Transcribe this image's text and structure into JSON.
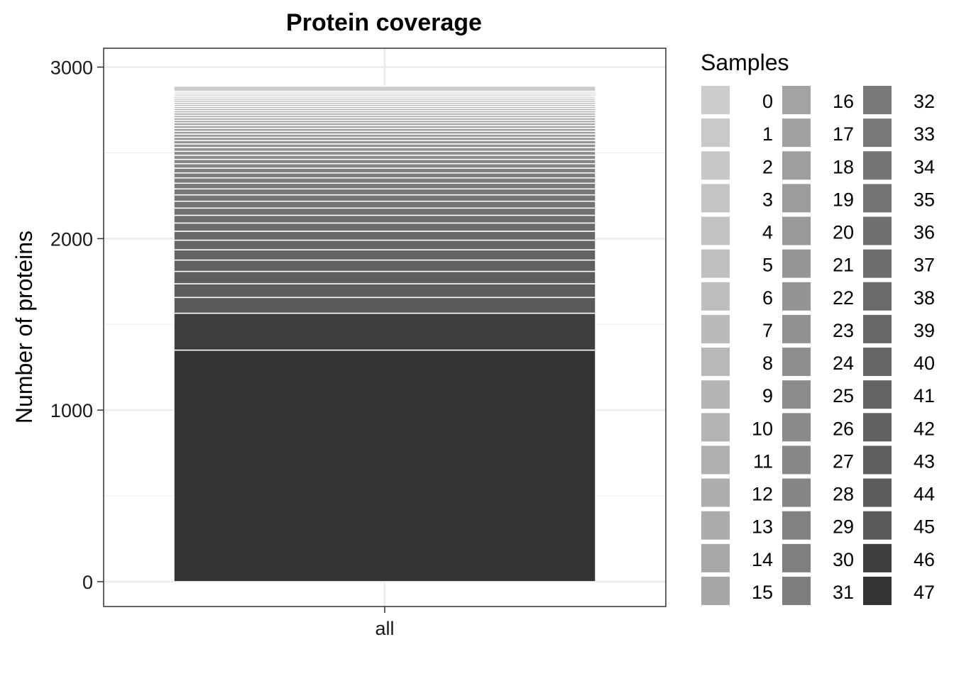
{
  "chart_data": {
    "type": "bar",
    "stacked": true,
    "title": "Protein coverage",
    "xlabel": "",
    "ylabel": "Number of proteins",
    "categories": [
      "all"
    ],
    "ylim": [
      -145,
      3110
    ],
    "yticks": [
      0,
      1000,
      2000,
      3000
    ],
    "ytick_labels": [
      "0",
      "1000",
      "2000",
      "3000"
    ],
    "grid": true,
    "legend": {
      "title": "Samples",
      "position": "right",
      "columns": 3
    },
    "stack_order": "sample 47 at bottom, sample 0 at top",
    "series": [
      {
        "name": "0",
        "values": [
          30
        ],
        "color": "#cccccc"
      },
      {
        "name": "1",
        "values": [
          10
        ],
        "color": "#c9c9c9"
      },
      {
        "name": "2",
        "values": [
          10
        ],
        "color": "#c7c7c7"
      },
      {
        "name": "3",
        "values": [
          10
        ],
        "color": "#c4c4c4"
      },
      {
        "name": "4",
        "values": [
          10
        ],
        "color": "#c2c2c2"
      },
      {
        "name": "5",
        "values": [
          12
        ],
        "color": "#bfbfbf"
      },
      {
        "name": "6",
        "values": [
          12
        ],
        "color": "#bdbdbd"
      },
      {
        "name": "7",
        "values": [
          12
        ],
        "color": "#bababa"
      },
      {
        "name": "8",
        "values": [
          12
        ],
        "color": "#b8b8b8"
      },
      {
        "name": "9",
        "values": [
          12
        ],
        "color": "#b5b5b5"
      },
      {
        "name": "10",
        "values": [
          13
        ],
        "color": "#b3b3b3"
      },
      {
        "name": "11",
        "values": [
          13
        ],
        "color": "#b0b0b0"
      },
      {
        "name": "12",
        "values": [
          14
        ],
        "color": "#aeaeae"
      },
      {
        "name": "13",
        "values": [
          14
        ],
        "color": "#ababab"
      },
      {
        "name": "14",
        "values": [
          15
        ],
        "color": "#a8a8a8"
      },
      {
        "name": "15",
        "values": [
          15
        ],
        "color": "#a6a6a6"
      },
      {
        "name": "16",
        "values": [
          16
        ],
        "color": "#a3a3a3"
      },
      {
        "name": "17",
        "values": [
          16
        ],
        "color": "#a1a1a1"
      },
      {
        "name": "18",
        "values": [
          17
        ],
        "color": "#9e9e9e"
      },
      {
        "name": "19",
        "values": [
          17
        ],
        "color": "#9c9c9c"
      },
      {
        "name": "20",
        "values": [
          18
        ],
        "color": "#999999"
      },
      {
        "name": "21",
        "values": [
          19
        ],
        "color": "#969696"
      },
      {
        "name": "22",
        "values": [
          20
        ],
        "color": "#949494"
      },
      {
        "name": "23",
        "values": [
          21
        ],
        "color": "#919191"
      },
      {
        "name": "24",
        "values": [
          22
        ],
        "color": "#8f8f8f"
      },
      {
        "name": "25",
        "values": [
          23
        ],
        "color": "#8c8c8c"
      },
      {
        "name": "26",
        "values": [
          24
        ],
        "color": "#8a8a8a"
      },
      {
        "name": "27",
        "values": [
          25
        ],
        "color": "#878787"
      },
      {
        "name": "28",
        "values": [
          26
        ],
        "color": "#858585"
      },
      {
        "name": "29",
        "values": [
          28
        ],
        "color": "#828282"
      },
      {
        "name": "30",
        "values": [
          29
        ],
        "color": "#7f7f7f"
      },
      {
        "name": "31",
        "values": [
          31
        ],
        "color": "#7d7d7d"
      },
      {
        "name": "32",
        "values": [
          33
        ],
        "color": "#7a7a7a"
      },
      {
        "name": "33",
        "values": [
          35
        ],
        "color": "#787878"
      },
      {
        "name": "34",
        "values": [
          37
        ],
        "color": "#757575"
      },
      {
        "name": "35",
        "values": [
          40
        ],
        "color": "#737373"
      },
      {
        "name": "36",
        "values": [
          42
        ],
        "color": "#707070"
      },
      {
        "name": "37",
        "values": [
          45
        ],
        "color": "#6e6e6e"
      },
      {
        "name": "38",
        "values": [
          48
        ],
        "color": "#6b6b6b"
      },
      {
        "name": "39",
        "values": [
          52
        ],
        "color": "#686868"
      },
      {
        "name": "40",
        "values": [
          56
        ],
        "color": "#666666"
      },
      {
        "name": "41",
        "values": [
          60
        ],
        "color": "#636363"
      },
      {
        "name": "42",
        "values": [
          66
        ],
        "color": "#616161"
      },
      {
        "name": "43",
        "values": [
          72
        ],
        "color": "#5e5e5e"
      },
      {
        "name": "44",
        "values": [
          80
        ],
        "color": "#5c5c5c"
      },
      {
        "name": "45",
        "values": [
          92
        ],
        "color": "#595959"
      },
      {
        "name": "46",
        "values": [
          215
        ],
        "color": "#3d3d3d"
      },
      {
        "name": "47",
        "values": [
          1350
        ],
        "color": "#333333"
      }
    ]
  }
}
